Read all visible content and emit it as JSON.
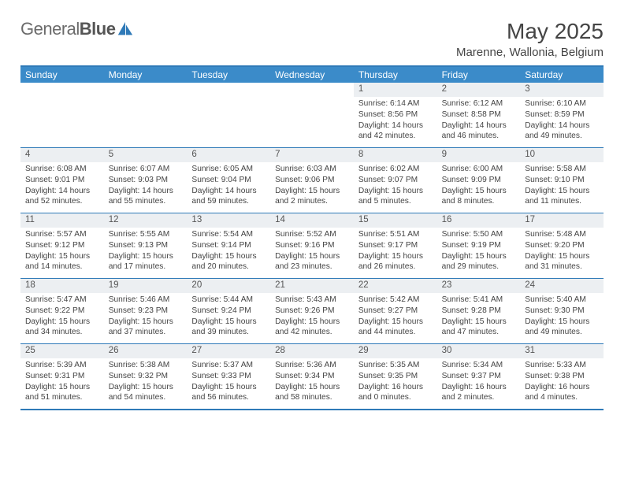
{
  "logo": {
    "text_part1": "General",
    "text_part2": "Blue"
  },
  "title": "May 2025",
  "location": "Marenne, Wallonia, Belgium",
  "colors": {
    "header_bg": "#3b8bc9",
    "border": "#2f7ab8",
    "daynum_bg": "#eceff2",
    "text": "#444444",
    "logo_text": "#6b6b6b"
  },
  "day_labels": [
    "Sunday",
    "Monday",
    "Tuesday",
    "Wednesday",
    "Thursday",
    "Friday",
    "Saturday"
  ],
  "weeks": [
    [
      {
        "n": "",
        "sr": "",
        "ss": "",
        "dl": ""
      },
      {
        "n": "",
        "sr": "",
        "ss": "",
        "dl": ""
      },
      {
        "n": "",
        "sr": "",
        "ss": "",
        "dl": ""
      },
      {
        "n": "",
        "sr": "",
        "ss": "",
        "dl": ""
      },
      {
        "n": "1",
        "sr": "Sunrise: 6:14 AM",
        "ss": "Sunset: 8:56 PM",
        "dl": "Daylight: 14 hours and 42 minutes."
      },
      {
        "n": "2",
        "sr": "Sunrise: 6:12 AM",
        "ss": "Sunset: 8:58 PM",
        "dl": "Daylight: 14 hours and 46 minutes."
      },
      {
        "n": "3",
        "sr": "Sunrise: 6:10 AM",
        "ss": "Sunset: 8:59 PM",
        "dl": "Daylight: 14 hours and 49 minutes."
      }
    ],
    [
      {
        "n": "4",
        "sr": "Sunrise: 6:08 AM",
        "ss": "Sunset: 9:01 PM",
        "dl": "Daylight: 14 hours and 52 minutes."
      },
      {
        "n": "5",
        "sr": "Sunrise: 6:07 AM",
        "ss": "Sunset: 9:03 PM",
        "dl": "Daylight: 14 hours and 55 minutes."
      },
      {
        "n": "6",
        "sr": "Sunrise: 6:05 AM",
        "ss": "Sunset: 9:04 PM",
        "dl": "Daylight: 14 hours and 59 minutes."
      },
      {
        "n": "7",
        "sr": "Sunrise: 6:03 AM",
        "ss": "Sunset: 9:06 PM",
        "dl": "Daylight: 15 hours and 2 minutes."
      },
      {
        "n": "8",
        "sr": "Sunrise: 6:02 AM",
        "ss": "Sunset: 9:07 PM",
        "dl": "Daylight: 15 hours and 5 minutes."
      },
      {
        "n": "9",
        "sr": "Sunrise: 6:00 AM",
        "ss": "Sunset: 9:09 PM",
        "dl": "Daylight: 15 hours and 8 minutes."
      },
      {
        "n": "10",
        "sr": "Sunrise: 5:58 AM",
        "ss": "Sunset: 9:10 PM",
        "dl": "Daylight: 15 hours and 11 minutes."
      }
    ],
    [
      {
        "n": "11",
        "sr": "Sunrise: 5:57 AM",
        "ss": "Sunset: 9:12 PM",
        "dl": "Daylight: 15 hours and 14 minutes."
      },
      {
        "n": "12",
        "sr": "Sunrise: 5:55 AM",
        "ss": "Sunset: 9:13 PM",
        "dl": "Daylight: 15 hours and 17 minutes."
      },
      {
        "n": "13",
        "sr": "Sunrise: 5:54 AM",
        "ss": "Sunset: 9:14 PM",
        "dl": "Daylight: 15 hours and 20 minutes."
      },
      {
        "n": "14",
        "sr": "Sunrise: 5:52 AM",
        "ss": "Sunset: 9:16 PM",
        "dl": "Daylight: 15 hours and 23 minutes."
      },
      {
        "n": "15",
        "sr": "Sunrise: 5:51 AM",
        "ss": "Sunset: 9:17 PM",
        "dl": "Daylight: 15 hours and 26 minutes."
      },
      {
        "n": "16",
        "sr": "Sunrise: 5:50 AM",
        "ss": "Sunset: 9:19 PM",
        "dl": "Daylight: 15 hours and 29 minutes."
      },
      {
        "n": "17",
        "sr": "Sunrise: 5:48 AM",
        "ss": "Sunset: 9:20 PM",
        "dl": "Daylight: 15 hours and 31 minutes."
      }
    ],
    [
      {
        "n": "18",
        "sr": "Sunrise: 5:47 AM",
        "ss": "Sunset: 9:22 PM",
        "dl": "Daylight: 15 hours and 34 minutes."
      },
      {
        "n": "19",
        "sr": "Sunrise: 5:46 AM",
        "ss": "Sunset: 9:23 PM",
        "dl": "Daylight: 15 hours and 37 minutes."
      },
      {
        "n": "20",
        "sr": "Sunrise: 5:44 AM",
        "ss": "Sunset: 9:24 PM",
        "dl": "Daylight: 15 hours and 39 minutes."
      },
      {
        "n": "21",
        "sr": "Sunrise: 5:43 AM",
        "ss": "Sunset: 9:26 PM",
        "dl": "Daylight: 15 hours and 42 minutes."
      },
      {
        "n": "22",
        "sr": "Sunrise: 5:42 AM",
        "ss": "Sunset: 9:27 PM",
        "dl": "Daylight: 15 hours and 44 minutes."
      },
      {
        "n": "23",
        "sr": "Sunrise: 5:41 AM",
        "ss": "Sunset: 9:28 PM",
        "dl": "Daylight: 15 hours and 47 minutes."
      },
      {
        "n": "24",
        "sr": "Sunrise: 5:40 AM",
        "ss": "Sunset: 9:30 PM",
        "dl": "Daylight: 15 hours and 49 minutes."
      }
    ],
    [
      {
        "n": "25",
        "sr": "Sunrise: 5:39 AM",
        "ss": "Sunset: 9:31 PM",
        "dl": "Daylight: 15 hours and 51 minutes."
      },
      {
        "n": "26",
        "sr": "Sunrise: 5:38 AM",
        "ss": "Sunset: 9:32 PM",
        "dl": "Daylight: 15 hours and 54 minutes."
      },
      {
        "n": "27",
        "sr": "Sunrise: 5:37 AM",
        "ss": "Sunset: 9:33 PM",
        "dl": "Daylight: 15 hours and 56 minutes."
      },
      {
        "n": "28",
        "sr": "Sunrise: 5:36 AM",
        "ss": "Sunset: 9:34 PM",
        "dl": "Daylight: 15 hours and 58 minutes."
      },
      {
        "n": "29",
        "sr": "Sunrise: 5:35 AM",
        "ss": "Sunset: 9:35 PM",
        "dl": "Daylight: 16 hours and 0 minutes."
      },
      {
        "n": "30",
        "sr": "Sunrise: 5:34 AM",
        "ss": "Sunset: 9:37 PM",
        "dl": "Daylight: 16 hours and 2 minutes."
      },
      {
        "n": "31",
        "sr": "Sunrise: 5:33 AM",
        "ss": "Sunset: 9:38 PM",
        "dl": "Daylight: 16 hours and 4 minutes."
      }
    ]
  ]
}
